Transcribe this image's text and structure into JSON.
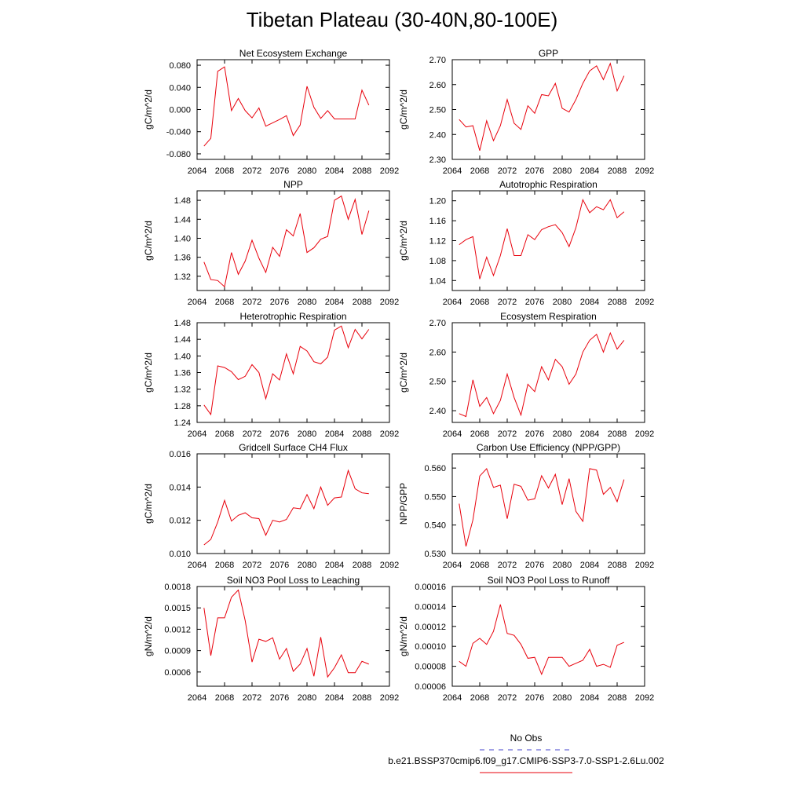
{
  "title": "Tibetan Plateau (30-40N,80-100E)",
  "legend": [
    {
      "label": "No Obs",
      "color": "#4444cc",
      "dash": true
    },
    {
      "label": "b.e21.BSSP370cmip6.f09_g17.CMIP6-SSP3-7.0-SSP1-2.6Lu.002",
      "color": "#e8000b",
      "dash": false
    }
  ],
  "chart_data": [
    {
      "type": "line",
      "title": "Net Ecosystem Exchange",
      "ylabel": "gC/m^2/d",
      "xlim": [
        2064,
        2092
      ],
      "ylim": [
        -0.09,
        0.09
      ],
      "xticks": [
        "2064",
        "2068",
        "2072",
        "2076",
        "2080",
        "2084",
        "2088",
        "2092"
      ],
      "yticks": [
        "-0.080",
        "-0.040",
        "0.000",
        "0.040",
        "0.080"
      ],
      "ytick_values": [
        -0.08,
        -0.04,
        0,
        0.04,
        0.08
      ],
      "series": [
        {
          "color": "#e8000b",
          "x": [
            2065,
            2066,
            2067,
            2068,
            2069,
            2070,
            2071,
            2072,
            2073,
            2074,
            2075,
            2076,
            2077,
            2078,
            2079,
            2080,
            2081,
            2082,
            2083,
            2084,
            2085,
            2086,
            2087,
            2088,
            2089
          ],
          "y": [
            -0.066,
            -0.052,
            0.069,
            0.077,
            -0.002,
            0.02,
            -0.002,
            -0.015,
            0.003,
            -0.03,
            -0.024,
            -0.018,
            -0.011,
            -0.047,
            -0.028,
            0.042,
            0.004,
            -0.016,
            -0.002,
            -0.017,
            -0.017,
            -0.017,
            -0.017,
            0.035,
            0.008
          ]
        }
      ]
    },
    {
      "type": "line",
      "title": "GPP",
      "ylabel": "gC/m^2/d",
      "xlim": [
        2064,
        2092
      ],
      "ylim": [
        2.3,
        2.7
      ],
      "xticks": [
        "2064",
        "2068",
        "2072",
        "2076",
        "2080",
        "2084",
        "2088",
        "2092"
      ],
      "yticks": [
        "2.30",
        "2.40",
        "2.50",
        "2.60",
        "2.70"
      ],
      "ytick_values": [
        2.3,
        2.4,
        2.5,
        2.6,
        2.7
      ],
      "series": [
        {
          "color": "#e8000b",
          "x": [
            2065,
            2066,
            2067,
            2068,
            2069,
            2070,
            2071,
            2072,
            2073,
            2074,
            2075,
            2076,
            2077,
            2078,
            2079,
            2080,
            2081,
            2082,
            2083,
            2084,
            2085,
            2086,
            2087,
            2088,
            2089
          ],
          "y": [
            2.46,
            2.43,
            2.435,
            2.335,
            2.455,
            2.375,
            2.435,
            2.54,
            2.445,
            2.42,
            2.515,
            2.485,
            2.56,
            2.555,
            2.605,
            2.505,
            2.49,
            2.54,
            2.605,
            2.655,
            2.675,
            2.62,
            2.685,
            2.575,
            2.635
          ]
        }
      ]
    },
    {
      "type": "line",
      "title": "NPP",
      "ylabel": "gC/m^2/d",
      "xlim": [
        2064,
        2092
      ],
      "ylim": [
        1.29,
        1.5
      ],
      "xticks": [
        "2064",
        "2068",
        "2072",
        "2076",
        "2080",
        "2084",
        "2088",
        "2092"
      ],
      "yticks": [
        "1.32",
        "1.36",
        "1.40",
        "1.44",
        "1.48"
      ],
      "ytick_values": [
        1.32,
        1.36,
        1.4,
        1.44,
        1.48
      ],
      "series": [
        {
          "color": "#e8000b",
          "x": [
            2065,
            2066,
            2067,
            2068,
            2069,
            2070,
            2071,
            2072,
            2073,
            2074,
            2075,
            2076,
            2077,
            2078,
            2079,
            2080,
            2081,
            2082,
            2083,
            2084,
            2085,
            2086,
            2087,
            2088,
            2089
          ],
          "y": [
            1.35,
            1.313,
            1.311,
            1.298,
            1.37,
            1.324,
            1.352,
            1.396,
            1.358,
            1.328,
            1.381,
            1.362,
            1.418,
            1.405,
            1.452,
            1.37,
            1.38,
            1.398,
            1.404,
            1.48,
            1.489,
            1.44,
            1.482,
            1.408,
            1.458
          ]
        }
      ]
    },
    {
      "type": "line",
      "title": "Autotrophic Respiration",
      "ylabel": "gC/m^2/d",
      "xlim": [
        2064,
        2092
      ],
      "ylim": [
        1.02,
        1.22
      ],
      "xticks": [
        "2064",
        "2068",
        "2072",
        "2076",
        "2080",
        "2084",
        "2088",
        "2092"
      ],
      "yticks": [
        "1.04",
        "1.08",
        "1.12",
        "1.16",
        "1.20"
      ],
      "ytick_values": [
        1.04,
        1.08,
        1.12,
        1.16,
        1.2
      ],
      "series": [
        {
          "color": "#e8000b",
          "x": [
            2065,
            2066,
            2067,
            2068,
            2069,
            2070,
            2071,
            2072,
            2073,
            2074,
            2075,
            2076,
            2077,
            2078,
            2079,
            2080,
            2081,
            2082,
            2083,
            2084,
            2085,
            2086,
            2087,
            2088,
            2089
          ],
          "y": [
            1.112,
            1.122,
            1.128,
            1.043,
            1.087,
            1.05,
            1.09,
            1.144,
            1.09,
            1.09,
            1.132,
            1.122,
            1.142,
            1.148,
            1.152,
            1.136,
            1.108,
            1.146,
            1.202,
            1.176,
            1.188,
            1.182,
            1.202,
            1.166,
            1.178
          ]
        }
      ]
    },
    {
      "type": "line",
      "title": "Heterotrophic Respiration",
      "ylabel": "gC/m^2/d",
      "xlim": [
        2064,
        2092
      ],
      "ylim": [
        1.24,
        1.48
      ],
      "xticks": [
        "2064",
        "2068",
        "2072",
        "2076",
        "2080",
        "2084",
        "2088",
        "2092"
      ],
      "yticks": [
        "1.24",
        "1.28",
        "1.32",
        "1.36",
        "1.40",
        "1.44",
        "1.48"
      ],
      "ytick_values": [
        1.24,
        1.28,
        1.32,
        1.36,
        1.4,
        1.44,
        1.48
      ],
      "series": [
        {
          "color": "#e8000b",
          "x": [
            2065,
            2066,
            2067,
            2068,
            2069,
            2070,
            2071,
            2072,
            2073,
            2074,
            2075,
            2076,
            2077,
            2078,
            2079,
            2080,
            2081,
            2082,
            2083,
            2084,
            2085,
            2086,
            2087,
            2088,
            2089
          ],
          "y": [
            1.282,
            1.259,
            1.376,
            1.372,
            1.362,
            1.343,
            1.351,
            1.379,
            1.36,
            1.297,
            1.357,
            1.342,
            1.405,
            1.357,
            1.423,
            1.412,
            1.386,
            1.381,
            1.397,
            1.462,
            1.472,
            1.42,
            1.464,
            1.441,
            1.464
          ]
        }
      ]
    },
    {
      "type": "line",
      "title": "Ecosystem Respiration",
      "ylabel": "gC/m^2/d",
      "xlim": [
        2064,
        2092
      ],
      "ylim": [
        2.36,
        2.7
      ],
      "xticks": [
        "2064",
        "2068",
        "2072",
        "2076",
        "2080",
        "2084",
        "2088",
        "2092"
      ],
      "yticks": [
        "2.40",
        "2.50",
        "2.60",
        "2.70"
      ],
      "ytick_values": [
        2.4,
        2.5,
        2.6,
        2.7
      ],
      "series": [
        {
          "color": "#e8000b",
          "x": [
            2065,
            2066,
            2067,
            2068,
            2069,
            2070,
            2071,
            2072,
            2073,
            2074,
            2075,
            2076,
            2077,
            2078,
            2079,
            2080,
            2081,
            2082,
            2083,
            2084,
            2085,
            2086,
            2087,
            2088,
            2089
          ],
          "y": [
            2.39,
            2.38,
            2.505,
            2.415,
            2.445,
            2.39,
            2.435,
            2.525,
            2.445,
            2.385,
            2.49,
            2.465,
            2.55,
            2.505,
            2.575,
            2.55,
            2.49,
            2.525,
            2.6,
            2.64,
            2.66,
            2.6,
            2.665,
            2.61,
            2.64
          ]
        }
      ]
    },
    {
      "type": "line",
      "title": "Gridcell Surface CH4 Flux",
      "ylabel": "gC/m^2/d",
      "xlim": [
        2064,
        2092
      ],
      "ylim": [
        0.01,
        0.016
      ],
      "xticks": [
        "2064",
        "2068",
        "2072",
        "2076",
        "2080",
        "2084",
        "2088",
        "2092"
      ],
      "yticks": [
        "0.010",
        "0.012",
        "0.014",
        "0.016"
      ],
      "ytick_values": [
        0.01,
        0.012,
        0.014,
        0.016
      ],
      "series": [
        {
          "color": "#e8000b",
          "x": [
            2065,
            2066,
            2067,
            2068,
            2069,
            2070,
            2071,
            2072,
            2073,
            2074,
            2075,
            2076,
            2077,
            2078,
            2079,
            2080,
            2081,
            2082,
            2083,
            2084,
            2085,
            2086,
            2087,
            2088,
            2089
          ],
          "y": [
            0.01052,
            0.01085,
            0.0119,
            0.0132,
            0.01195,
            0.0123,
            0.01245,
            0.01215,
            0.0121,
            0.0111,
            0.012,
            0.0119,
            0.01205,
            0.01275,
            0.0127,
            0.01355,
            0.0127,
            0.014,
            0.0129,
            0.01335,
            0.0134,
            0.015,
            0.0139,
            0.01365,
            0.0136
          ]
        }
      ]
    },
    {
      "type": "line",
      "title": "Carbon Use Efficiency (NPP/GPP)",
      "ylabel": "NPP/GPP",
      "xlim": [
        2064,
        2092
      ],
      "ylim": [
        0.53,
        0.565
      ],
      "xticks": [
        "2064",
        "2068",
        "2072",
        "2076",
        "2080",
        "2084",
        "2088",
        "2092"
      ],
      "yticks": [
        "0.530",
        "0.540",
        "0.550",
        "0.560"
      ],
      "ytick_values": [
        0.53,
        0.54,
        0.55,
        0.56
      ],
      "series": [
        {
          "color": "#e8000b",
          "x": [
            2065,
            2066,
            2067,
            2068,
            2069,
            2070,
            2071,
            2072,
            2073,
            2074,
            2075,
            2076,
            2077,
            2078,
            2079,
            2080,
            2081,
            2082,
            2083,
            2084,
            2085,
            2086,
            2087,
            2088,
            2089
          ],
          "y": [
            0.5475,
            0.5325,
            0.5418,
            0.5572,
            0.5598,
            0.5532,
            0.554,
            0.5422,
            0.5543,
            0.5536,
            0.5487,
            0.5492,
            0.5573,
            0.553,
            0.5578,
            0.5472,
            0.5563,
            0.5448,
            0.5413,
            0.5598,
            0.5593,
            0.5508,
            0.5532,
            0.5482,
            0.556
          ]
        }
      ]
    },
    {
      "type": "line",
      "title": "Soil NO3 Pool Loss to Leaching",
      "ylabel": "gN/m^2/d",
      "xlim": [
        2064,
        2092
      ],
      "ylim": [
        0.0004,
        0.0018
      ],
      "xticks": [
        "2064",
        "2068",
        "2072",
        "2076",
        "2080",
        "2084",
        "2088",
        "2092"
      ],
      "yticks": [
        "0.0006",
        "0.0009",
        "0.0012",
        "0.0015",
        "0.0018"
      ],
      "ytick_values": [
        0.0006,
        0.0009,
        0.0012,
        0.0015,
        0.0018
      ],
      "series": [
        {
          "color": "#e8000b",
          "x": [
            2065,
            2066,
            2067,
            2068,
            2069,
            2070,
            2071,
            2072,
            2073,
            2074,
            2075,
            2076,
            2077,
            2078,
            2079,
            2080,
            2081,
            2082,
            2083,
            2084,
            2085,
            2086,
            2087,
            2088,
            2089
          ],
          "y": [
            0.0015,
            0.00083,
            0.00136,
            0.00136,
            0.00165,
            0.00175,
            0.00132,
            0.00074,
            0.00106,
            0.00103,
            0.00108,
            0.00078,
            0.00093,
            0.00061,
            0.00071,
            0.00093,
            0.00054,
            0.00109,
            0.00053,
            0.00066,
            0.00084,
            0.00059,
            0.00059,
            0.00075,
            0.00071
          ]
        }
      ]
    },
    {
      "type": "line",
      "title": "Soil NO3 Pool Loss to Runoff",
      "ylabel": "gN/m^2/d",
      "xlim": [
        2064,
        2092
      ],
      "ylim": [
        6e-05,
        0.00016
      ],
      "xticks": [
        "2064",
        "2068",
        "2072",
        "2076",
        "2080",
        "2084",
        "2088",
        "2092"
      ],
      "yticks": [
        "0.00006",
        "0.00008",
        "0.00010",
        "0.00012",
        "0.00014",
        "0.00016"
      ],
      "ytick_values": [
        6e-05,
        8e-05,
        0.0001,
        0.00012,
        0.00014,
        0.00016
      ],
      "series": [
        {
          "color": "#e8000b",
          "x": [
            2065,
            2066,
            2067,
            2068,
            2069,
            2070,
            2071,
            2072,
            2073,
            2074,
            2075,
            2076,
            2077,
            2078,
            2079,
            2080,
            2081,
            2082,
            2083,
            2084,
            2085,
            2086,
            2087,
            2088,
            2089
          ],
          "y": [
            8.5e-05,
            8e-05,
            0.000103,
            0.000108,
            0.000102,
            0.000115,
            0.000142,
            0.000113,
            0.000111,
            0.000102,
            8.8e-05,
            8.9e-05,
            7.2e-05,
            8.9e-05,
            8.9e-05,
            8.9e-05,
            8e-05,
            8.3e-05,
            8.6e-05,
            9.7e-05,
            8e-05,
            8.2e-05,
            7.9e-05,
            0.000101,
            0.000104
          ]
        }
      ]
    }
  ]
}
